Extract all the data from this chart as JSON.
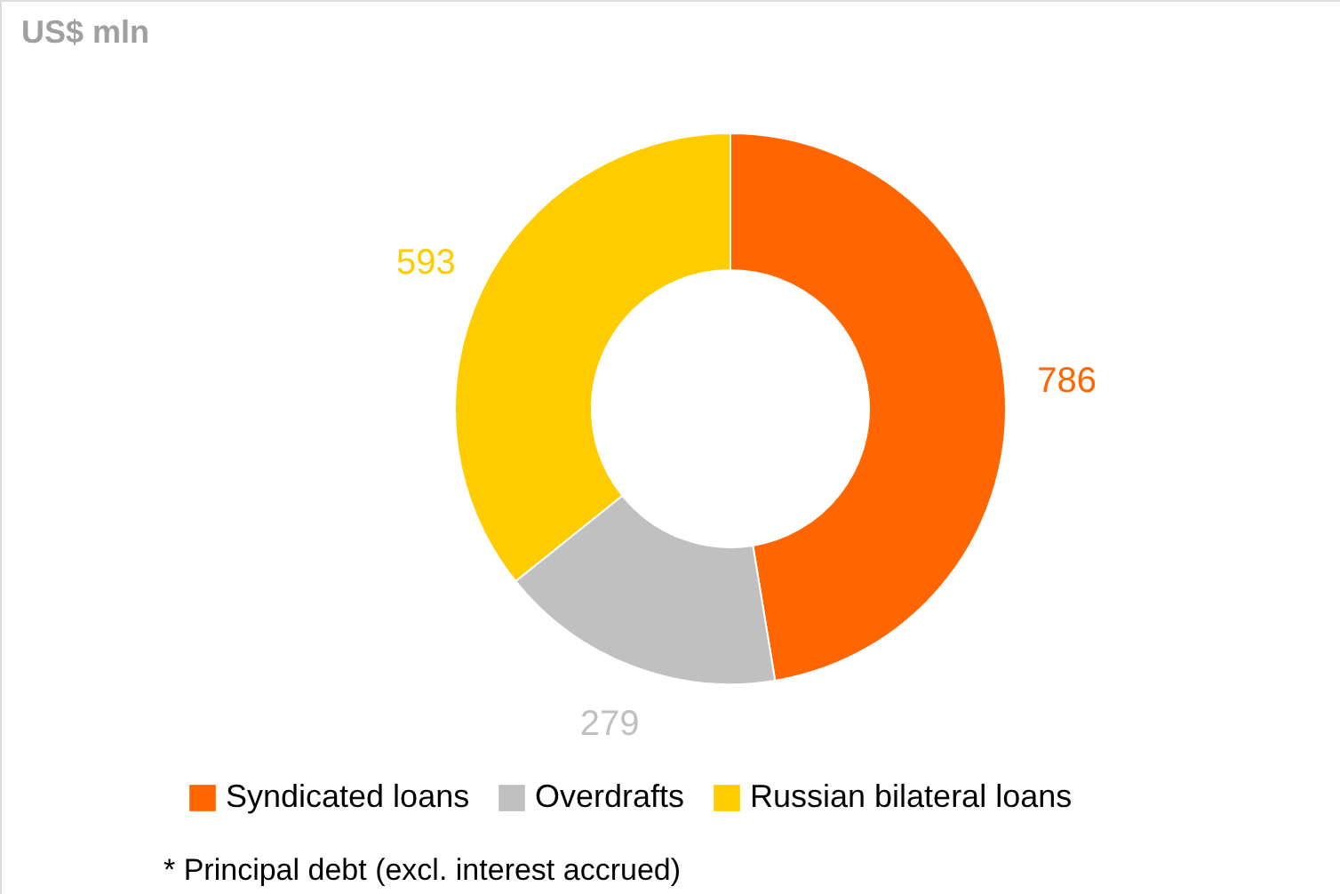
{
  "chart_data": {
    "type": "donut",
    "title": "US$ mln",
    "categories": [
      "Syndicated loans",
      "Overdrafts",
      "Russian bilateral loans"
    ],
    "values": [
      786,
      279,
      593
    ],
    "colors": [
      "#ff6600",
      "#c0c0c0",
      "#ffcc00"
    ],
    "data_labels": true,
    "legend": "bottom",
    "annotations": [
      "* Principal debt (excl. interest accrued)"
    ]
  }
}
